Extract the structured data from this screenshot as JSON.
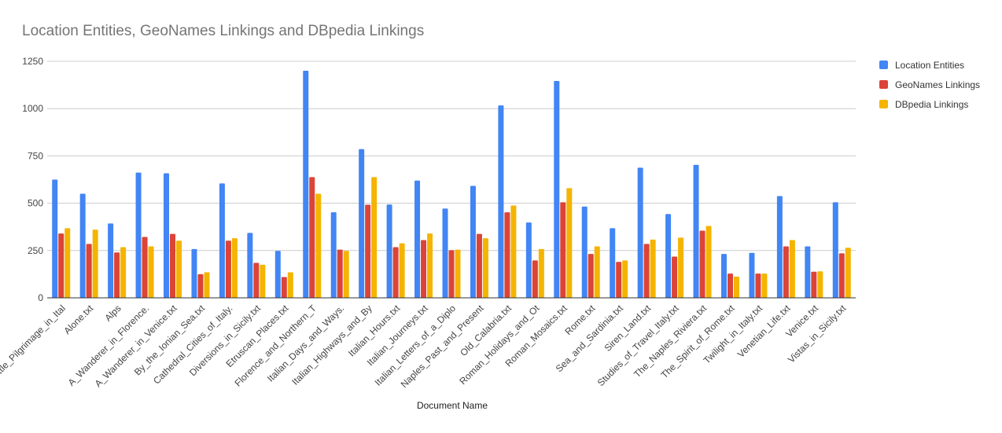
{
  "chart_data": {
    "type": "bar",
    "title": "Location Entities, GeoNames Linkings and DBpedia Linkings",
    "xlabel": "Document Name",
    "ylabel": "",
    "ylim": [
      0,
      1250
    ],
    "yticks": [
      "0",
      "250",
      "500",
      "750",
      "1000",
      "1250"
    ],
    "grid": true,
    "legend_position": "right",
    "categories": [
      "A_Little_Pilgrimage_in_Ital",
      "Alone.txt",
      "Alps",
      "A_Wanderer_in_Florence.",
      "A_Wanderer_in_Venice.txt",
      "By_the_Ionian_Sea.txt",
      "Cathedral_Cities_of_Italy.",
      "Diversions_in_Sicily.txt",
      "Etruscan_Places.txt",
      "Florence_and_Northern_T",
      "Italian_Days_and_Ways.",
      "Italian_Highways_and_By",
      "Italian_Hours.txt",
      "Italian_Journeys.txt",
      "Italian_Letters_of_a_Diplo",
      "Naples_Past_and_Present",
      "Old_Calabria.txt",
      "Roman_Holidays_and_Ot",
      "Roman_Mosaics.txt",
      "Rome.txt",
      "Sea_and_Sardinia.txt",
      "Siren_Land.txt",
      "Studies_of_Travel_Italy.txt",
      "The_Naples_Riviera.txt",
      "The_Spirit_of_Rome.txt",
      "Twilight_in_Italy.txt",
      "Venetian_Life.txt",
      "Venice.txt",
      "Vistas_in_Sicily.txt"
    ],
    "series": [
      {
        "name": "Location Entities",
        "color": "#4285f4",
        "values": [
          625,
          550,
          393,
          662,
          658,
          258,
          605,
          343,
          248,
          1200,
          452,
          786,
          493,
          620,
          472,
          592,
          1017,
          398,
          1146,
          482,
          368,
          688,
          443,
          703,
          232,
          238,
          538,
          272,
          505
        ]
      },
      {
        "name": "GeoNames Linkings",
        "color": "#db4437",
        "values": [
          340,
          285,
          240,
          322,
          338,
          125,
          302,
          185,
          110,
          638,
          255,
          492,
          268,
          305,
          252,
          338,
          452,
          198,
          505,
          232,
          190,
          285,
          218,
          355,
          128,
          128,
          272,
          138,
          235
        ]
      },
      {
        "name": "DBpedia Linkings",
        "color": "#f4b400",
        "values": [
          368,
          360,
          268,
          272,
          302,
          135,
          315,
          175,
          135,
          550,
          248,
          638,
          288,
          340,
          255,
          315,
          488,
          258,
          580,
          272,
          198,
          308,
          318,
          380,
          112,
          128,
          305,
          140,
          265
        ]
      }
    ]
  }
}
